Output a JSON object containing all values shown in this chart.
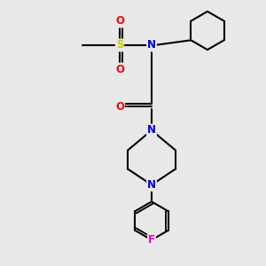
{
  "bg_color": "#e8e8e8",
  "bond_color": "#000000",
  "bond_width": 1.5,
  "atom_colors": {
    "N": "#0000ee",
    "O": "#ff0000",
    "S": "#cccc00",
    "F": "#ff00bb",
    "C": "#000000"
  },
  "font_size_atom": 8.5,
  "xlim": [
    0,
    10
  ],
  "ylim": [
    0,
    10
  ]
}
